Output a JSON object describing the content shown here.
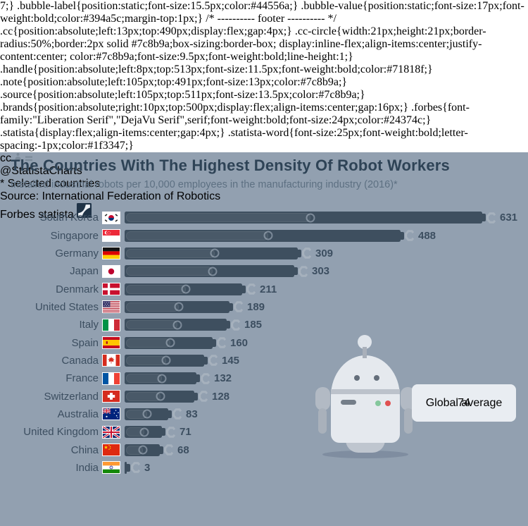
{
  "header": {
    "title": "The Countries With The Highest Density Of Robot Workers",
    "subtitle": "Installed industrial robots per 10,000 employees in the manufacturing industry (2016)*"
  },
  "chart_data": {
    "type": "bar",
    "orientation": "horizontal",
    "title": "The Countries With The Highest Density Of Robot Workers",
    "subtitle": "Installed industrial robots per 10,000 employees in the manufacturing industry (2016)*",
    "categories": [
      "South Korea",
      "Singapore",
      "Germany",
      "Japan",
      "Denmark",
      "United States",
      "Italy",
      "Spain",
      "Canada",
      "France",
      "Switzerland",
      "Australia",
      "United Kingdom",
      "China",
      "India"
    ],
    "values": [
      631,
      488,
      309,
      303,
      211,
      189,
      185,
      160,
      145,
      132,
      128,
      83,
      71,
      68,
      3
    ],
    "flags": [
      "kr",
      "sg",
      "de",
      "jp",
      "dk",
      "us",
      "it",
      "es",
      "ca",
      "fr",
      "ch",
      "au",
      "gb",
      "cn",
      "in"
    ],
    "xlim": [
      0,
      650
    ],
    "grid": false,
    "legend": false,
    "value_labels": "end-of-bar",
    "annotation": {
      "label": "Global average",
      "value": "74"
    }
  },
  "colors": {
    "background": "#92a0b0",
    "bar": "#3e4f5f",
    "title": "#2e4356",
    "claw": "#a6b1bd",
    "bubble": "#e9edf2"
  },
  "footer": {
    "license_icons": [
      "cc-icon",
      "attribution-person-icon",
      "equals-icon"
    ],
    "cc_label": "cc",
    "handle": "@StatistaCharts",
    "note": "* Selected countries",
    "source": "Source: International Federation of Robotics",
    "brand_forbes": "Forbes",
    "brand_statista": "statista"
  }
}
